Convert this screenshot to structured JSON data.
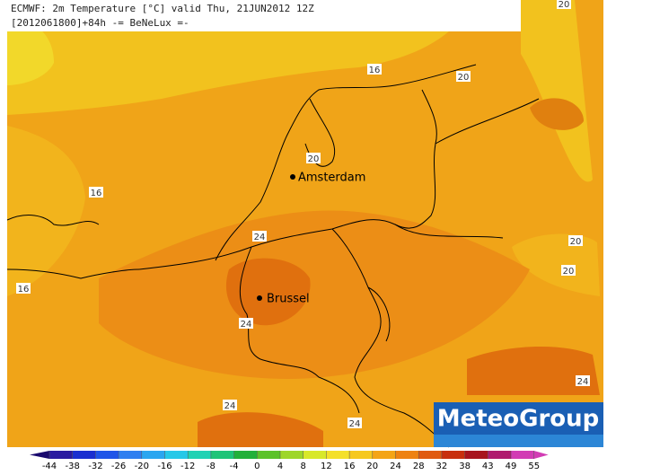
{
  "header": {
    "line1": "ECMWF: 2m Temperature [°C] valid Thu, 21JUN2012 12Z",
    "line2": "[2012061800]+84h -= BeNeLux =-"
  },
  "cities": [
    "Amsterdam",
    "Brussel"
  ],
  "contour_labels": [
    16,
    20,
    20,
    16,
    20,
    24,
    20,
    20,
    16,
    24,
    24,
    24,
    24
  ],
  "colorbar": {
    "ticks": [
      -44,
      -38,
      -32,
      -26,
      -20,
      -16,
      -12,
      -8,
      -4,
      0,
      4,
      8,
      12,
      16,
      20,
      24,
      28,
      32,
      38,
      43,
      49,
      55
    ],
    "colors": [
      "#1a0a6e",
      "#2a1aa0",
      "#1a2fd0",
      "#1f55e8",
      "#2f7ff0",
      "#2aa6f0",
      "#26c8e8",
      "#20d2b4",
      "#1ec478",
      "#22b03a",
      "#5cc22a",
      "#9ed62a",
      "#d8e82a",
      "#f4e02a",
      "#f6c81e",
      "#f4a416",
      "#ee8212",
      "#e05a10",
      "#c8300e",
      "#a8141e",
      "#b01a6e",
      "#d23cb4"
    ]
  },
  "logo": "MeteoGroup"
}
